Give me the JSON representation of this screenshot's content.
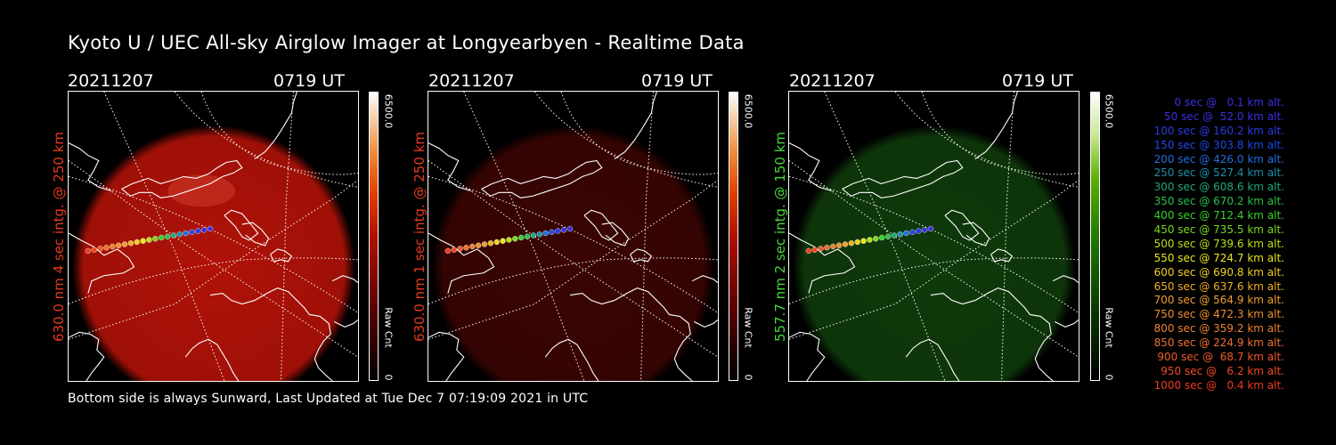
{
  "title": "Kyoto U / UEC All-sky Airglow Imager at Longyearbyen - Realtime Data",
  "panels": [
    {
      "date": "20211207",
      "time": "0719 UT",
      "side_label": "630.0 nm 4 sec intg. @ 250 km",
      "label_color": "#e8391e",
      "cbar_max": "6500.0",
      "cbar_min": "0",
      "cbar_unit": "Raw Cnt",
      "cbar_gradient": "linear-gradient(to top,#000 0%,#5a0000 25%,#b01000 50%,#e04000 65%,#f09040 80%,#fff 100%)",
      "disk_color": "#b01208",
      "brightness": 0.55
    },
    {
      "date": "20211207",
      "time": "0719 UT",
      "side_label": "630.0 nm 1 sec intg. @ 250 km",
      "label_color": "#e8391e",
      "cbar_max": "6500.0",
      "cbar_min": "0",
      "cbar_unit": "Raw Cnt",
      "cbar_gradient": "linear-gradient(to top,#000 0%,#5a0000 25%,#b01000 50%,#e04000 65%,#f09040 80%,#fff 100%)",
      "disk_color": "#3a0502",
      "brightness": 0.35
    },
    {
      "date": "20211207",
      "time": "0719 UT",
      "side_label": "557.7 nm 2 sec intg. @ 150 km",
      "label_color": "#46d63a",
      "cbar_max": "6500.0",
      "cbar_min": "0",
      "cbar_unit": "Raw Cnt",
      "cbar_gradient": "linear-gradient(to top,#000 0%,#0a3a00 25%,#1f7a00 50%,#5ab000 70%,#c8e890 85%,#fff 100%)",
      "disk_color": "#0f3a0b",
      "brightness": 0.4
    }
  ],
  "legend": [
    {
      "text": "0 sec @   0.1 km alt.",
      "color": "#3a2fe0"
    },
    {
      "text": "50 sec @  52.0 km alt.",
      "color": "#3a2fe0"
    },
    {
      "text": "100 sec @ 160.2 km alt.",
      "color": "#2a3ae6"
    },
    {
      "text": "150 sec @ 303.8 km alt.",
      "color": "#1f48e8"
    },
    {
      "text": "200 sec @ 426.0 km alt.",
      "color": "#1f6fe0"
    },
    {
      "text": "250 sec @ 527.4 km alt.",
      "color": "#1e8fa8"
    },
    {
      "text": "300 sec @ 608.6 km alt.",
      "color": "#1fa87a"
    },
    {
      "text": "350 sec @ 670.2 km alt.",
      "color": "#2ac04a"
    },
    {
      "text": "400 sec @ 712.4 km alt.",
      "color": "#38d02a"
    },
    {
      "text": "450 sec @ 735.5 km alt.",
      "color": "#7ad820"
    },
    {
      "text": "500 sec @ 739.6 km alt.",
      "color": "#b8e01a"
    },
    {
      "text": "550 sec @ 724.7 km alt.",
      "color": "#e8e81a"
    },
    {
      "text": "600 sec @ 690.8 km alt.",
      "color": "#f0d020"
    },
    {
      "text": "650 sec @ 637.6 km alt.",
      "color": "#f0b020"
    },
    {
      "text": "700 sec @ 564.9 km alt.",
      "color": "#f0a030"
    },
    {
      "text": "750 sec @ 472.3 km alt.",
      "color": "#f09030"
    },
    {
      "text": "800 sec @ 359.2 km alt.",
      "color": "#f08030"
    },
    {
      "text": "850 sec @ 224.9 km alt.",
      "color": "#f07030"
    },
    {
      "text": "900 sec @  68.7 km alt.",
      "color": "#f05a2a"
    },
    {
      "text": "950 sec @   6.2 km alt.",
      "color": "#f04a25"
    },
    {
      "text": "1000 sec @   0.4 km alt.",
      "color": "#f03a20"
    }
  ],
  "footer": "Bottom side is always Sunward, Last Updated at Tue Dec  7 07:19:09 2021 in UTC"
}
